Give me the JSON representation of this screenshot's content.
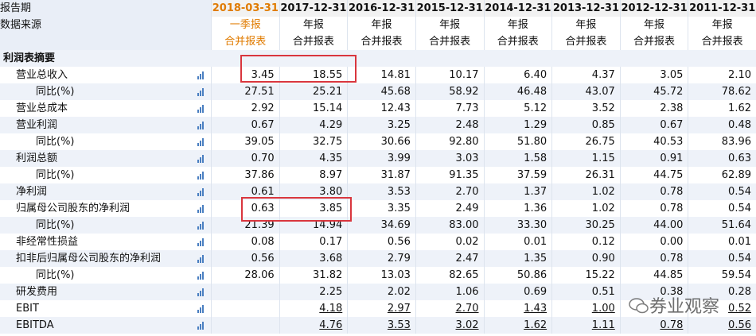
{
  "header": {
    "period_label": "报告期",
    "source_label": "数据来源",
    "periods": [
      "2018-03-31",
      "2017-12-31",
      "2016-12-31",
      "2015-12-31",
      "2014-12-31",
      "2013-12-31",
      "2012-12-31",
      "2011-12-31"
    ],
    "report_types": [
      "一季报",
      "年报",
      "年报",
      "年报",
      "年报",
      "年报",
      "年报",
      "年报"
    ],
    "statement_types": [
      "合并报表",
      "合并报表",
      "合并报表",
      "合并报表",
      "合并报表",
      "合并报表",
      "合并报表",
      "合并报表"
    ]
  },
  "section": "利润表摘要",
  "rows": [
    {
      "label": "营业总收入",
      "values": [
        "3.45",
        "18.55",
        "14.81",
        "10.17",
        "6.40",
        "4.37",
        "3.05",
        "2.10"
      ]
    },
    {
      "label": "同比(%)",
      "sub": true,
      "values": [
        "27.51",
        "25.21",
        "45.68",
        "58.92",
        "46.48",
        "43.07",
        "45.72",
        "78.62"
      ]
    },
    {
      "label": "营业总成本",
      "values": [
        "2.92",
        "15.14",
        "12.43",
        "7.73",
        "5.12",
        "3.52",
        "2.38",
        "1.62"
      ]
    },
    {
      "label": "营业利润",
      "values": [
        "0.67",
        "4.29",
        "3.25",
        "2.48",
        "1.29",
        "0.85",
        "0.67",
        "0.48"
      ]
    },
    {
      "label": "同比(%)",
      "sub": true,
      "values": [
        "39.05",
        "32.75",
        "30.66",
        "92.80",
        "51.80",
        "26.75",
        "40.53",
        "83.96"
      ]
    },
    {
      "label": "利润总额",
      "values": [
        "0.70",
        "4.35",
        "3.99",
        "3.03",
        "1.58",
        "1.15",
        "0.91",
        "0.63"
      ]
    },
    {
      "label": "同比(%)",
      "sub": true,
      "values": [
        "37.86",
        "8.97",
        "31.87",
        "91.35",
        "37.59",
        "26.31",
        "44.75",
        "62.89"
      ]
    },
    {
      "label": "净利润",
      "values": [
        "0.61",
        "3.80",
        "3.53",
        "2.70",
        "1.37",
        "1.02",
        "0.78",
        "0.54"
      ]
    },
    {
      "label": "归属母公司股东的净利润",
      "values": [
        "0.63",
        "3.85",
        "3.35",
        "2.49",
        "1.36",
        "1.02",
        "0.78",
        "0.54"
      ]
    },
    {
      "label": "同比(%)",
      "sub": true,
      "values": [
        "21.39",
        "14.94",
        "34.69",
        "83.00",
        "33.30",
        "30.25",
        "44.00",
        "51.64"
      ]
    },
    {
      "label": "非经常性损益",
      "values": [
        "0.08",
        "0.17",
        "0.56",
        "0.02",
        "0.01",
        "0.12",
        "0.00",
        "0.01"
      ]
    },
    {
      "label": "扣非后归属母公司股东的净利润",
      "values": [
        "0.56",
        "3.68",
        "2.79",
        "2.47",
        "1.35",
        "0.90",
        "0.78",
        "0.54"
      ]
    },
    {
      "label": "同比(%)",
      "sub": true,
      "values": [
        "28.06",
        "31.82",
        "13.03",
        "82.65",
        "50.86",
        "15.22",
        "44.85",
        "59.54"
      ]
    },
    {
      "label": "研发费用",
      "values": [
        null,
        "2.25",
        "2.02",
        "1.06",
        "0.69",
        "0.51",
        "0.38",
        "0.28"
      ]
    },
    {
      "label": "EBIT",
      "link": true,
      "values": [
        null,
        "4.18",
        "2.97",
        "2.70",
        "1.43",
        "1.00",
        null,
        "0.52"
      ]
    },
    {
      "label": "EBITDA",
      "link": true,
      "values": [
        null,
        "4.76",
        "3.53",
        "3.02",
        "1.62",
        "1.11",
        "0.78",
        "0.56"
      ]
    }
  ],
  "watermark": "券业观察"
}
